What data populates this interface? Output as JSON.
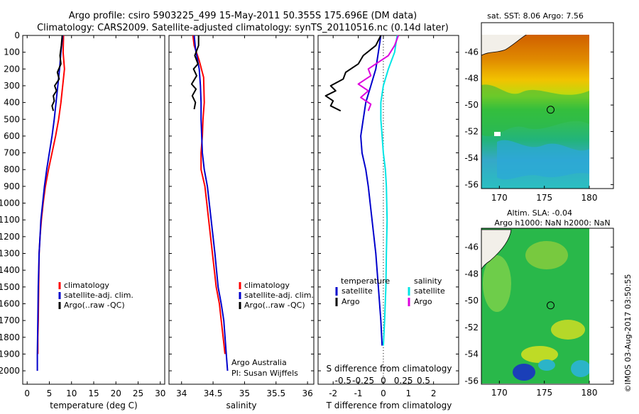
{
  "header": {
    "line1": "Argo profile: csiro 5903225_499 15-May-2011 50.355S 175.696E (DM data)",
    "line2": "Climatology: CARS2009. Satellite-adjusted climatology: synTS_20110516.nc (0.14d later)"
  },
  "colors": {
    "climatology": "#ff0000",
    "satellite": "#0000cc",
    "argo": "#000000",
    "satellite_salinity": "#00e5e5",
    "argo_salinity": "#dd00dd"
  },
  "chart_data": [
    {
      "type": "line",
      "xlabel": "temperature (deg C)",
      "ylabel": "",
      "xlim": [
        -1,
        31
      ],
      "ylim": [
        2080,
        0
      ],
      "xticks": [
        0,
        5,
        10,
        15,
        20,
        25,
        30
      ],
      "yticks": [
        0,
        100,
        200,
        300,
        400,
        500,
        600,
        700,
        800,
        900,
        1000,
        1100,
        1200,
        1300,
        1400,
        1500,
        1600,
        1700,
        1800,
        1900,
        2000
      ],
      "legend_position": "lower-right",
      "series": [
        {
          "name": "climatology",
          "color": "#ff0000",
          "x": [
            8.2,
            8.1,
            8.4,
            8.0,
            7.6,
            7.1,
            6.4,
            5.6,
            4.8,
            4.1,
            3.6,
            3.2,
            2.9,
            2.7,
            2.6,
            2.5,
            2.4,
            2.4
          ],
          "y": [
            0,
            100,
            200,
            300,
            400,
            500,
            600,
            700,
            800,
            900,
            1000,
            1100,
            1200,
            1300,
            1500,
            1700,
            1800,
            1900
          ]
        },
        {
          "name": "satellite-adj. clim.",
          "color": "#0000cc",
          "x": [
            8.0,
            7.6,
            7.3,
            6.9,
            6.5,
            6.1,
            5.6,
            5.0,
            4.4,
            3.9,
            3.5,
            3.1,
            2.9,
            2.7,
            2.5,
            2.4,
            2.3,
            2.3
          ],
          "y": [
            0,
            100,
            200,
            300,
            400,
            500,
            600,
            700,
            800,
            900,
            1000,
            1100,
            1200,
            1300,
            1500,
            1700,
            1900,
            2000
          ]
        },
        {
          "name": "Argo(..raw -QC)",
          "color": "#000000",
          "x": [
            7.9,
            7.7,
            7.4,
            7.6,
            6.8,
            7.2,
            6.2,
            6.6,
            5.9,
            6.1,
            5.6,
            5.9
          ],
          "y": [
            0,
            60,
            120,
            170,
            220,
            260,
            300,
            330,
            360,
            390,
            420,
            450
          ]
        }
      ]
    },
    {
      "type": "line",
      "xlabel": "salinity",
      "ylabel": "",
      "xlim": [
        33.8,
        36.1
      ],
      "ylim": [
        2080,
        0
      ],
      "xticks": [
        34,
        34.5,
        35,
        35.5,
        36
      ],
      "xtick_labels": [
        "34",
        "34.5",
        "35",
        "35.5",
        "36"
      ],
      "legend_position": "lower-right",
      "annotation_lines": [
        "Argo Australia",
        "PI: Susan Wijffels"
      ],
      "series": [
        {
          "name": "climatology",
          "color": "#ff0000",
          "x": [
            34.18,
            34.2,
            34.28,
            34.35,
            34.36,
            34.34,
            34.33,
            34.31,
            34.31,
            34.37,
            34.43,
            34.49,
            34.55,
            34.6,
            34.63,
            34.66,
            34.69
          ],
          "y": [
            0,
            60,
            150,
            250,
            400,
            500,
            600,
            700,
            800,
            900,
            1100,
            1300,
            1500,
            1600,
            1700,
            1800,
            1900
          ]
        },
        {
          "name": "satellite-adj. clim.",
          "color": "#0000cc",
          "x": [
            34.2,
            34.22,
            34.28,
            34.3,
            34.31,
            34.31,
            34.32,
            34.33,
            34.36,
            34.41,
            34.47,
            34.53,
            34.58,
            34.63,
            34.67,
            34.71,
            34.73
          ],
          "y": [
            0,
            80,
            200,
            300,
            400,
            500,
            600,
            700,
            800,
            900,
            1100,
            1300,
            1500,
            1600,
            1700,
            1900,
            2000
          ]
        },
        {
          "name": "Argo(..raw -QC)",
          "color": "#000000",
          "x": [
            34.27,
            34.27,
            34.21,
            34.26,
            34.19,
            34.24,
            34.16,
            34.23,
            34.17,
            34.22,
            34.2
          ],
          "y": [
            0,
            60,
            120,
            170,
            200,
            240,
            290,
            320,
            360,
            400,
            440
          ]
        }
      ]
    },
    {
      "type": "line",
      "xlabel": "T difference from climatology",
      "secondary_xlabel": "S difference from climatology",
      "ylabel": "",
      "xlim": [
        -2.6,
        3.0
      ],
      "ylim": [
        2080,
        0
      ],
      "xticks": [
        -2,
        -1,
        0,
        1,
        2
      ],
      "secondary_xticks": [
        -0.5,
        -0.25,
        0,
        0.25,
        0.5
      ],
      "secondary_xtick_labels": [
        "-0.5",
        "-0.25",
        "0",
        "0.25",
        "0.5"
      ],
      "legend_position": "lower-center",
      "legend_titles": [
        "temperature",
        "salinity"
      ],
      "series": [
        {
          "name": "satellite",
          "group": "temperature",
          "color": "#0000cc",
          "x": [
            -0.1,
            -0.2,
            -0.3,
            -0.5,
            -0.7,
            -0.8,
            -0.9,
            -0.85,
            -0.7,
            -0.6,
            -0.45,
            -0.3,
            -0.2,
            -0.1,
            -0.05
          ],
          "y": [
            0,
            100,
            200,
            300,
            400,
            500,
            600,
            700,
            800,
            900,
            1100,
            1300,
            1500,
            1700,
            1850
          ]
        },
        {
          "name": "Argo",
          "group": "temperature",
          "color": "#000000",
          "x": [
            -0.1,
            -0.3,
            -0.8,
            -1.0,
            -1.5,
            -1.6,
            -2.1,
            -1.9,
            -2.3,
            -2.0,
            -2.1,
            -1.7
          ],
          "y": [
            0,
            60,
            120,
            170,
            220,
            260,
            300,
            330,
            360,
            390,
            420,
            450
          ]
        },
        {
          "name": "satellite",
          "group": "salinity",
          "color": "#00e5e5",
          "x": [
            0.55,
            0.45,
            0.2,
            0.0,
            -0.1,
            -0.1,
            -0.05,
            0.0,
            0.08,
            0.12,
            0.15,
            0.12,
            0.1,
            0.05,
            0.0
          ],
          "y": [
            0,
            100,
            200,
            300,
            400,
            500,
            600,
            700,
            800,
            900,
            1100,
            1300,
            1500,
            1700,
            1850
          ]
        },
        {
          "name": "Argo",
          "group": "salinity",
          "color": "#dd00dd",
          "x": [
            0.6,
            0.45,
            0.2,
            -0.3,
            -0.6,
            -0.5,
            -1.0,
            -0.6,
            -0.9,
            -0.5,
            -0.6
          ],
          "y": [
            0,
            60,
            120,
            170,
            200,
            240,
            290,
            330,
            370,
            410,
            450
          ]
        }
      ]
    },
    {
      "type": "heatmap",
      "title": "sat. SST: 8.06 Argo: 7.56",
      "xlim": [
        168,
        180
      ],
      "ylim": [
        -56.3,
        -44.7
      ],
      "xticks": [
        170,
        175,
        180
      ],
      "yticks": [
        -46,
        -48,
        -50,
        -52,
        -54,
        -56
      ],
      "ytick_labels": [
        "-46",
        "-48",
        "-50",
        "-52",
        "-54",
        "-56"
      ],
      "marker": {
        "lon": 175.696,
        "lat": -50.355
      }
    },
    {
      "type": "heatmap",
      "title": "Altim. SLA: -0.04",
      "subtitle": "Argo h1000: NaN h2000: NaN",
      "xlim": [
        168,
        180
      ],
      "ylim": [
        -56.3,
        -44.7
      ],
      "xticks": [
        170,
        175,
        180
      ],
      "yticks": [
        -46,
        -48,
        -50,
        -52,
        -54,
        -56
      ],
      "ytick_labels": [
        "-46",
        "-48",
        "-50",
        "-52",
        "-54",
        "-56"
      ],
      "marker": {
        "lon": 175.696,
        "lat": -50.355
      }
    }
  ],
  "legend_labels": {
    "climatology": "climatology",
    "satellite_adj": "satellite-adj. clim.",
    "argo_raw": "Argo(..raw -QC)",
    "temperature": "temperature",
    "salinity": "salinity",
    "satellite": "satellite",
    "argo": "Argo"
  },
  "footer": {
    "credit": "©IMOS 03-Aug-2017 03:50:55"
  }
}
